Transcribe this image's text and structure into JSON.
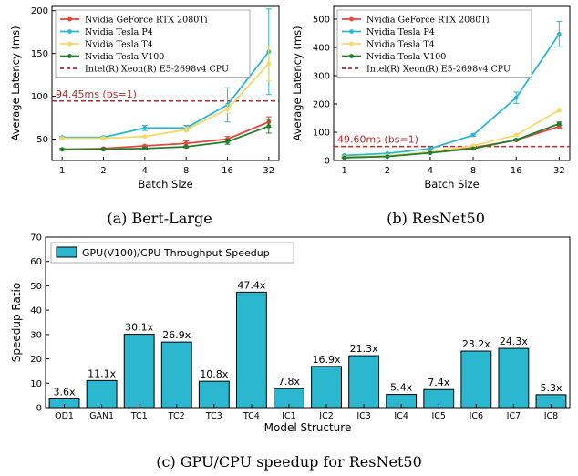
{
  "chart_data": [
    {
      "type": "line",
      "caption": "(a) Bert-Large",
      "xlabel": "Batch Size",
      "ylabel": "Average Latency (ms)",
      "categories": [
        "1",
        "2",
        "4",
        "8",
        "16",
        "32"
      ],
      "ylim": [
        25,
        205
      ],
      "yticks": [
        50,
        100,
        150,
        200
      ],
      "legend_position": "top-left",
      "series": [
        {
          "name": "Nvidia GeForce RTX 2080Ti",
          "color": "#e8453c",
          "values": [
            38,
            39,
            42,
            45,
            50,
            70
          ],
          "errors": [
            1,
            1,
            1,
            3,
            3,
            6
          ]
        },
        {
          "name": "Nvidia Tesla P4",
          "color": "#2ab7cf",
          "values": [
            52,
            52,
            63,
            63,
            90,
            152
          ],
          "errors": [
            1,
            1,
            3,
            3,
            20,
            50
          ]
        },
        {
          "name": "Nvidia Tesla T4",
          "color": "#f5d86a",
          "values": [
            51,
            51,
            53,
            61,
            85,
            138
          ],
          "errors": [
            1,
            1,
            1,
            3,
            5,
            20
          ]
        },
        {
          "name": "Nvidia Tesla V100",
          "color": "#1f7f2f",
          "values": [
            38,
            38,
            39,
            41,
            47,
            65
          ],
          "errors": [
            1,
            1,
            1,
            1,
            3,
            8
          ]
        }
      ],
      "reference": {
        "name": "Intel(R) Xeon(R) E5-2698v4 CPU",
        "value": 94.45,
        "label": "94.45ms (bs=1)",
        "color": "#b52a2a"
      }
    },
    {
      "type": "line",
      "caption": "(b) ResNet50",
      "xlabel": "Batch Size",
      "ylabel": "Average Latency (ms)",
      "categories": [
        "1",
        "2",
        "4",
        "8",
        "16",
        "32"
      ],
      "ylim": [
        0,
        545
      ],
      "yticks": [
        0,
        100,
        200,
        300,
        400,
        500
      ],
      "legend_position": "top-left",
      "series": [
        {
          "name": "Nvidia GeForce RTX 2080Ti",
          "color": "#e8453c",
          "values": [
            10,
            15,
            28,
            45,
            72,
            120
          ],
          "errors": [
            1,
            1,
            1,
            2,
            3,
            5
          ]
        },
        {
          "name": "Nvidia Tesla P4",
          "color": "#2ab7cf",
          "values": [
            18,
            25,
            42,
            90,
            222,
            447
          ],
          "errors": [
            1,
            1,
            2,
            4,
            20,
            45
          ]
        },
        {
          "name": "Nvidia Tesla T4",
          "color": "#f5d86a",
          "values": [
            12,
            17,
            30,
            52,
            90,
            178
          ],
          "errors": [
            1,
            1,
            1,
            3,
            4,
            6
          ]
        },
        {
          "name": "Nvidia Tesla V100",
          "color": "#1f7f2f",
          "values": [
            10,
            14,
            27,
            42,
            73,
            130
          ],
          "errors": [
            1,
            1,
            1,
            2,
            3,
            6
          ]
        }
      ],
      "reference": {
        "name": "Intel(R) Xeon(R) E5-2698v4 CPU",
        "value": 49.6,
        "label": "49.60ms (bs=1)",
        "color": "#b52a2a"
      }
    },
    {
      "type": "bar",
      "caption": "(c) GPU/CPU speedup for ResNet50",
      "xlabel": "Model Structure",
      "ylabel": "Speedup Ratio",
      "categories": [
        "OD1",
        "GAN1",
        "TC1",
        "TC2",
        "TC3",
        "TC4",
        "IC1",
        "IC2",
        "IC3",
        "IC4",
        "IC5",
        "IC6",
        "IC7",
        "IC8"
      ],
      "values": [
        3.6,
        11.1,
        30.1,
        26.9,
        10.8,
        47.4,
        7.8,
        16.9,
        21.3,
        5.4,
        7.4,
        23.2,
        24.3,
        5.3
      ],
      "value_labels": [
        "3.6x",
        "11.1x",
        "30.1x",
        "26.9x",
        "10.8x",
        "47.4x",
        "7.8x",
        "16.9x",
        "21.3x",
        "5.4x",
        "7.4x",
        "23.2x",
        "24.3x",
        "5.3x"
      ],
      "ylim": [
        0,
        70
      ],
      "yticks": [
        0,
        10,
        20,
        30,
        40,
        50,
        60,
        70
      ],
      "legend": [
        "GPU(V100)/CPU Throughput Speedup"
      ],
      "legend_position": "top-left",
      "color": "#2ab7cf"
    }
  ]
}
